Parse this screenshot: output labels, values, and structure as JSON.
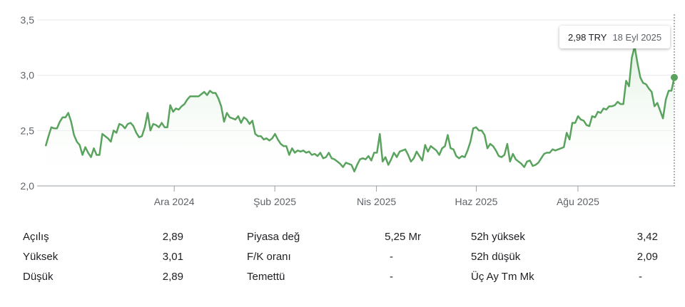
{
  "chart_data": {
    "type": "area",
    "currency": "TRY",
    "yticks": [
      "2,0",
      "2,5",
      "3,0",
      "3,5"
    ],
    "ylim": [
      2.0,
      3.5
    ],
    "xticks": [
      "Ara 2024",
      "Şub 2025",
      "Nis 2025",
      "Haz 2025",
      "Ağu 2025"
    ],
    "series": [
      {
        "values": [
          2.36,
          2.45,
          2.53,
          2.52,
          2.52,
          2.58,
          2.62,
          2.62,
          2.66,
          2.58,
          2.46,
          2.4,
          2.37,
          2.28,
          2.35,
          2.3,
          2.26,
          2.34,
          2.28,
          2.28,
          2.47,
          2.45,
          2.43,
          2.4,
          2.5,
          2.48,
          2.56,
          2.55,
          2.52,
          2.56,
          2.57,
          2.54,
          2.48,
          2.44,
          2.45,
          2.53,
          2.66,
          2.5,
          2.56,
          2.55,
          2.53,
          2.57,
          2.53,
          2.53,
          2.73,
          2.67,
          2.7,
          2.69,
          2.72,
          2.74,
          2.78,
          2.81,
          2.81,
          2.81,
          2.81,
          2.83,
          2.85,
          2.82,
          2.86,
          2.84,
          2.84,
          2.79,
          2.72,
          2.58,
          2.66,
          2.62,
          2.61,
          2.6,
          2.63,
          2.57,
          2.62,
          2.6,
          2.56,
          2.59,
          2.47,
          2.45,
          2.45,
          2.42,
          2.43,
          2.41,
          2.43,
          2.47,
          2.42,
          2.38,
          2.36,
          2.36,
          2.28,
          2.34,
          2.3,
          2.32,
          2.31,
          2.32,
          2.3,
          2.31,
          2.28,
          2.29,
          2.27,
          2.3,
          2.25,
          2.26,
          2.3,
          2.25,
          2.24,
          2.22,
          2.2,
          2.17,
          2.21,
          2.2,
          2.19,
          2.13,
          2.19,
          2.24,
          2.25,
          2.24,
          2.27,
          2.23,
          2.3,
          2.3,
          2.47,
          2.22,
          2.26,
          2.19,
          2.24,
          2.3,
          2.26,
          2.31,
          2.32,
          2.33,
          2.28,
          2.22,
          2.25,
          2.31,
          2.27,
          2.23,
          2.37,
          2.31,
          2.36,
          2.34,
          2.32,
          2.28,
          2.34,
          2.36,
          2.46,
          2.34,
          2.33,
          2.27,
          2.25,
          2.27,
          2.26,
          2.32,
          2.4,
          2.52,
          2.53,
          2.5,
          2.5,
          2.46,
          2.34,
          2.38,
          2.36,
          2.32,
          2.27,
          2.26,
          2.28,
          2.38,
          2.22,
          2.29,
          2.24,
          2.22,
          2.2,
          2.17,
          2.22,
          2.23,
          2.18,
          2.19,
          2.21,
          2.25,
          2.29,
          2.3,
          2.3,
          2.33,
          2.32,
          2.33,
          2.34,
          2.35,
          2.48,
          2.42,
          2.57,
          2.57,
          2.63,
          2.6,
          2.59,
          2.55,
          2.54,
          2.63,
          2.62,
          2.67,
          2.66,
          2.7,
          2.69,
          2.72,
          2.72,
          2.73,
          2.76,
          2.74,
          2.74,
          2.95,
          2.9,
          3.16,
          3.26,
          3.11,
          2.98,
          2.93,
          2.92,
          2.88,
          2.85,
          2.72,
          2.75,
          2.68,
          2.61,
          2.78,
          2.86,
          2.86,
          2.98
        ]
      }
    ],
    "last_point": {
      "price": "2,98 TRY",
      "date": "18 Eyl 2025"
    }
  },
  "stats": [
    {
      "label": "Açılış",
      "value": "2,89"
    },
    {
      "label": "Yüksek",
      "value": "3,01"
    },
    {
      "label": "Düşük",
      "value": "2,89"
    },
    {
      "label": "Piyasa değ",
      "value": "5,25 Mr"
    },
    {
      "label": "F/K oranı",
      "value": "-"
    },
    {
      "label": "Temettü",
      "value": "-"
    },
    {
      "label": "52h yüksek",
      "value": "3,42"
    },
    {
      "label": "52h düşük",
      "value": "2,09"
    },
    {
      "label": "Üç Ay Tm Mk",
      "value": "-"
    }
  ],
  "colors": {
    "line": "#5aa35e",
    "fill_top": "#dfefe0",
    "grid": "#e8eaed",
    "axis": "#9aa0a6"
  }
}
